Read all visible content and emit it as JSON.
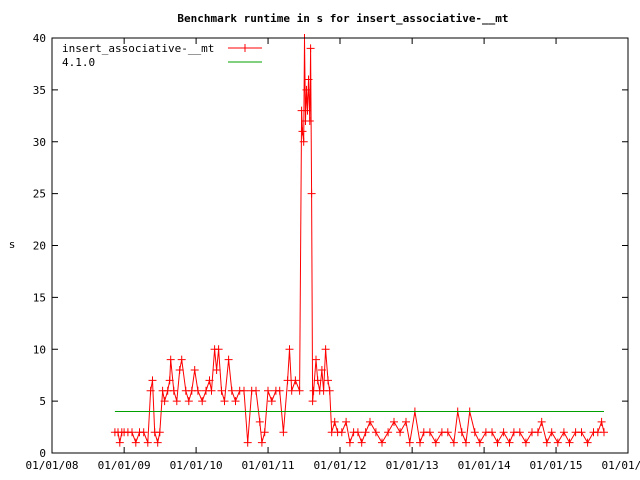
{
  "chart_data": {
    "type": "line",
    "title": "Benchmark runtime in s for insert_associative-__mt",
    "xlabel": "",
    "ylabel": "s",
    "xlim": [
      "2008-01-01",
      "2016-01-01"
    ],
    "ylim": [
      0,
      40
    ],
    "y_ticks": [
      0,
      5,
      10,
      15,
      20,
      25,
      30,
      35,
      40
    ],
    "x_ticks": [
      "2008-01-01",
      "2009-01-01",
      "2010-01-01",
      "2011-01-01",
      "2012-01-01",
      "2013-01-01",
      "2014-01-01",
      "2015-01-01",
      "2016-01-01"
    ],
    "x_tick_labels": [
      "01/01/08",
      "01/01/09",
      "01/01/10",
      "01/01/11",
      "01/01/12",
      "01/01/13",
      "01/01/14",
      "01/01/15",
      "01/01/16"
    ],
    "grid": false,
    "legend_position": "top-left",
    "series": [
      {
        "name": "insert_associative-__mt",
        "color": "#ff0000",
        "marker": "plus",
        "points": [
          [
            "2008-11-15",
            2
          ],
          [
            "2008-12-01",
            2
          ],
          [
            "2008-12-10",
            1
          ],
          [
            "2008-12-20",
            2
          ],
          [
            "2009-01-01",
            2
          ],
          [
            "2009-01-20",
            2
          ],
          [
            "2009-02-10",
            2
          ],
          [
            "2009-03-01",
            1
          ],
          [
            "2009-03-20",
            2
          ],
          [
            "2009-04-10",
            2
          ],
          [
            "2009-05-01",
            1
          ],
          [
            "2009-05-15",
            6
          ],
          [
            "2009-05-25",
            7
          ],
          [
            "2009-06-05",
            2
          ],
          [
            "2009-06-20",
            1
          ],
          [
            "2009-07-01",
            2
          ],
          [
            "2009-07-15",
            6
          ],
          [
            "2009-07-25",
            5
          ],
          [
            "2009-08-10",
            6
          ],
          [
            "2009-08-20",
            7
          ],
          [
            "2009-08-25",
            9
          ],
          [
            "2009-09-10",
            6
          ],
          [
            "2009-09-25",
            5
          ],
          [
            "2009-10-10",
            8
          ],
          [
            "2009-10-20",
            9
          ],
          [
            "2009-11-10",
            6
          ],
          [
            "2009-11-25",
            5
          ],
          [
            "2009-12-10",
            6
          ],
          [
            "2009-12-25",
            8
          ],
          [
            "2010-01-10",
            6
          ],
          [
            "2010-02-01",
            5
          ],
          [
            "2010-02-20",
            6
          ],
          [
            "2010-03-10",
            7
          ],
          [
            "2010-03-20",
            6
          ],
          [
            "2010-04-05",
            10
          ],
          [
            "2010-04-15",
            8
          ],
          [
            "2010-04-25",
            10
          ],
          [
            "2010-05-10",
            6
          ],
          [
            "2010-05-25",
            5
          ],
          [
            "2010-06-15",
            9
          ],
          [
            "2010-07-01",
            6
          ],
          [
            "2010-07-20",
            5
          ],
          [
            "2010-08-10",
            6
          ],
          [
            "2010-09-01",
            6
          ],
          [
            "2010-09-20",
            1
          ],
          [
            "2010-10-10",
            6
          ],
          [
            "2010-11-01",
            6
          ],
          [
            "2010-11-20",
            3
          ],
          [
            "2010-12-01",
            1
          ],
          [
            "2010-12-15",
            2
          ],
          [
            "2011-01-01",
            6
          ],
          [
            "2011-01-20",
            5
          ],
          [
            "2011-02-10",
            6
          ],
          [
            "2011-03-01",
            6
          ],
          [
            "2011-03-20",
            2
          ],
          [
            "2011-04-10",
            7
          ],
          [
            "2011-04-20",
            10
          ],
          [
            "2011-05-01",
            6
          ],
          [
            "2011-05-20",
            7
          ],
          [
            "2011-06-10",
            6
          ],
          [
            "2011-06-20",
            33
          ],
          [
            "2011-06-25",
            31
          ],
          [
            "2011-07-01",
            30
          ],
          [
            "2011-07-05",
            40
          ],
          [
            "2011-07-10",
            32
          ],
          [
            "2011-07-15",
            35
          ],
          [
            "2011-07-20",
            33
          ],
          [
            "2011-07-25",
            36
          ],
          [
            "2011-08-01",
            32
          ],
          [
            "2011-08-05",
            39
          ],
          [
            "2011-08-10",
            25
          ],
          [
            "2011-08-15",
            5
          ],
          [
            "2011-08-20",
            6
          ],
          [
            "2011-09-01",
            9
          ],
          [
            "2011-09-10",
            7
          ],
          [
            "2011-09-20",
            6
          ],
          [
            "2011-10-01",
            8
          ],
          [
            "2011-10-10",
            6
          ],
          [
            "2011-10-20",
            10
          ],
          [
            "2011-11-01",
            7
          ],
          [
            "2011-11-10",
            6
          ],
          [
            "2011-11-20",
            2
          ],
          [
            "2011-12-05",
            3
          ],
          [
            "2011-12-20",
            2
          ],
          [
            "2012-01-10",
            2
          ],
          [
            "2012-02-01",
            3
          ],
          [
            "2012-02-20",
            1
          ],
          [
            "2012-03-10",
            2
          ],
          [
            "2012-04-01",
            2
          ],
          [
            "2012-04-20",
            1
          ],
          [
            "2012-05-10",
            2
          ],
          [
            "2012-06-01",
            3
          ],
          [
            "2012-07-01",
            2
          ],
          [
            "2012-08-01",
            1
          ],
          [
            "2012-09-01",
            2
          ],
          [
            "2012-10-01",
            3
          ],
          [
            "2012-11-01",
            2
          ],
          [
            "2012-12-01",
            3
          ],
          [
            "2012-12-20",
            1
          ],
          [
            "2013-01-15",
            4
          ],
          [
            "2013-02-10",
            1
          ],
          [
            "2013-03-01",
            2
          ],
          [
            "2013-04-01",
            2
          ],
          [
            "2013-05-01",
            1
          ],
          [
            "2013-06-01",
            2
          ],
          [
            "2013-07-01",
            2
          ],
          [
            "2013-08-01",
            1
          ],
          [
            "2013-08-20",
            4
          ],
          [
            "2013-09-10",
            2
          ],
          [
            "2013-10-01",
            1
          ],
          [
            "2013-10-20",
            4
          ],
          [
            "2013-11-15",
            2
          ],
          [
            "2013-12-10",
            1
          ],
          [
            "2014-01-10",
            2
          ],
          [
            "2014-02-10",
            2
          ],
          [
            "2014-03-10",
            1
          ],
          [
            "2014-04-10",
            2
          ],
          [
            "2014-05-10",
            1
          ],
          [
            "2014-06-01",
            2
          ],
          [
            "2014-07-01",
            2
          ],
          [
            "2014-08-01",
            1
          ],
          [
            "2014-09-01",
            2
          ],
          [
            "2014-10-01",
            2
          ],
          [
            "2014-10-20",
            3
          ],
          [
            "2014-11-15",
            1
          ],
          [
            "2014-12-10",
            2
          ],
          [
            "2015-01-10",
            1
          ],
          [
            "2015-02-10",
            2
          ],
          [
            "2015-03-10",
            1
          ],
          [
            "2015-04-10",
            2
          ],
          [
            "2015-05-10",
            2
          ],
          [
            "2015-06-10",
            1
          ],
          [
            "2015-07-10",
            2
          ],
          [
            "2015-08-01",
            2
          ],
          [
            "2015-08-20",
            3
          ],
          [
            "2015-09-01",
            2
          ]
        ]
      },
      {
        "name": "4.1.0",
        "color": "#00a000",
        "marker": "none",
        "points": [
          [
            "2008-11-15",
            4
          ],
          [
            "2015-09-01",
            4
          ]
        ]
      }
    ]
  }
}
